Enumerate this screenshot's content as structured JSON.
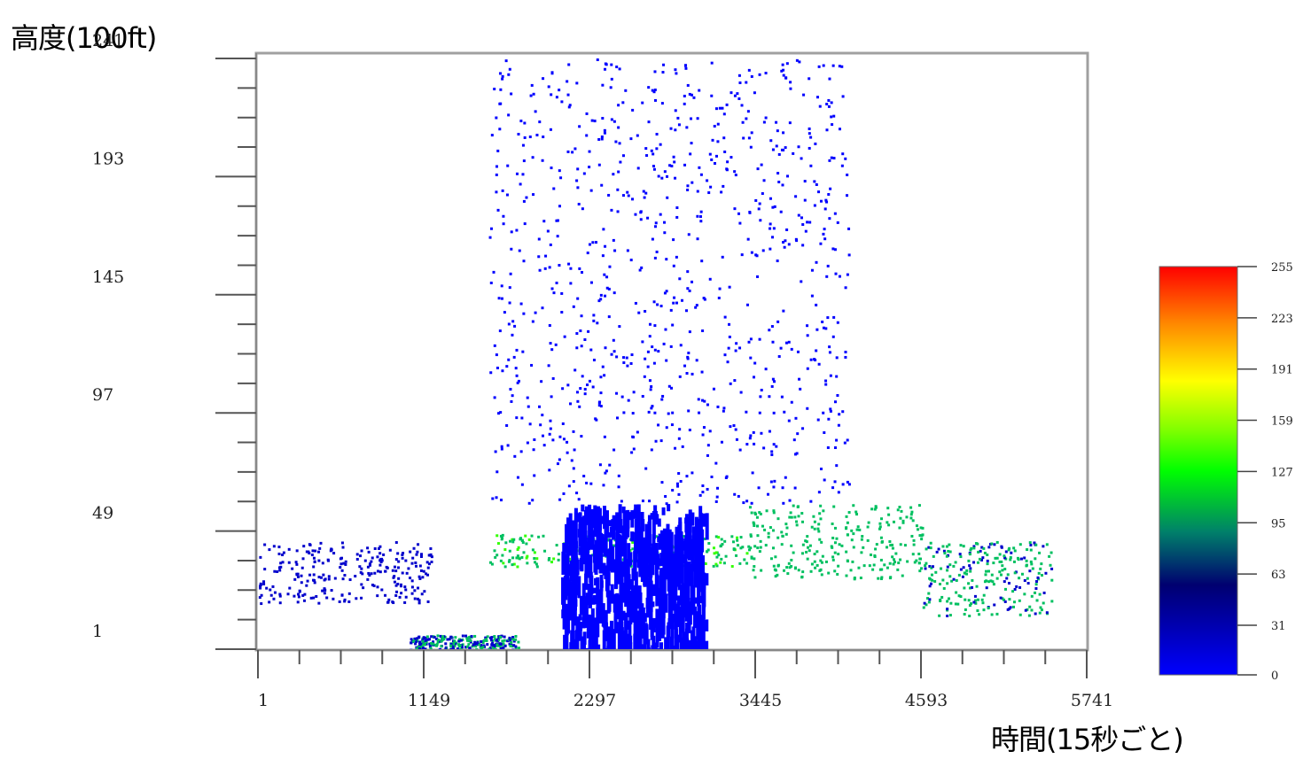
{
  "chart_data": {
    "type": "heatmap",
    "title": "",
    "ylabel": "高度(100ft)",
    "xlabel": "時間(15秒ごと)",
    "x_ticks": [
      "1",
      "1149",
      "2297",
      "3445",
      "4593",
      "5741"
    ],
    "y_ticks": [
      "1",
      "49",
      "97",
      "145",
      "193",
      "241"
    ],
    "xlim": [
      1,
      5741
    ],
    "ylim": [
      1,
      241
    ],
    "colorbar": {
      "ticks": [
        "0",
        "31",
        "63",
        "95",
        "127",
        "159",
        "191",
        "223",
        "255"
      ],
      "range": [
        0,
        255
      ],
      "colors": [
        "#0000ff",
        "#000088",
        "#008855",
        "#00ff00",
        "#ffff00",
        "#ff8800",
        "#ff0000"
      ]
    },
    "series": [
      {
        "x": [
          1,
          1200
        ],
        "y": [
          20,
          45
        ],
        "intensity": 60
      },
      {
        "x": [
          1050,
          1800
        ],
        "y": [
          1,
          7
        ],
        "intensity": 80
      },
      {
        "x": [
          1600,
          3400
        ],
        "y": [
          35,
          48
        ],
        "intensity": 110
      },
      {
        "x": [
          2100,
          3100
        ],
        "y": [
          1,
          60
        ],
        "intensity": 10
      },
      {
        "x": [
          1600,
          4100
        ],
        "y": [
          60,
          241
        ],
        "intensity": 5
      },
      {
        "x": [
          3400,
          4600
        ],
        "y": [
          30,
          60
        ],
        "intensity": 100
      },
      {
        "x": [
          4600,
          5500
        ],
        "y": [
          15,
          45
        ],
        "intensity": 90
      }
    ],
    "grid": false,
    "legend": "colorbar-right"
  }
}
